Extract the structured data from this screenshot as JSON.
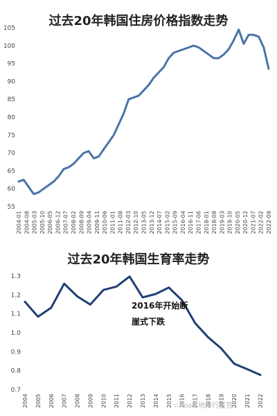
{
  "chart_data": [
    {
      "type": "line",
      "title": "过去20年韩国住房价格指数走势",
      "ylim": [
        55,
        105
      ],
      "yticks": [
        55,
        60,
        65,
        70,
        75,
        80,
        85,
        90,
        95,
        100,
        105
      ],
      "grid": false,
      "color": "#4a73a8",
      "x_ticks": [
        "2004-01",
        "2004-08",
        "2005-03",
        "2005-10",
        "2006-05",
        "2006-12",
        "2007-07",
        "2008-02",
        "2008-09",
        "2009-04",
        "2009-11",
        "2010-06",
        "2011-01",
        "2011-08",
        "2012-03",
        "2012-10",
        "2013-05",
        "2013-12",
        "2014-07",
        "2015-02",
        "2015-09",
        "2016-04",
        "2016-11",
        "2017-06",
        "2018-01",
        "2018-08",
        "2019-03",
        "2019-10",
        "2020-05",
        "2020-12",
        "2021-07",
        "2022-02",
        "2022-09"
      ],
      "series": [
        {
          "name": "",
          "values": [
            62,
            62.5,
            60.5,
            58.5,
            59,
            60,
            61,
            62,
            63.5,
            65.5,
            66,
            67,
            68.5,
            70,
            70.5,
            68.5,
            69,
            71,
            73,
            75,
            78,
            81,
            85,
            85.5,
            86,
            87.5,
            89,
            91,
            92.5,
            94,
            96.5,
            98,
            98.5,
            99,
            99.5,
            100,
            99.5,
            98.5,
            97.5,
            96.5,
            96.5,
            97.5,
            99,
            101.5,
            104.5,
            100.5,
            103,
            103,
            102.5,
            99.5,
            93.5
          ]
        }
      ]
    },
    {
      "type": "line",
      "title": "过去20年韩国生育率走势",
      "ylim": [
        0.7,
        1.3
      ],
      "yticks": [
        0.7,
        0.8,
        0.9,
        1.0,
        1.1,
        1.2,
        1.3
      ],
      "grid": false,
      "color": "#1e3f73",
      "categories": [
        "2004",
        "2005",
        "2006",
        "2007",
        "2008",
        "2009",
        "2010",
        "2011",
        "2012",
        "2013",
        "2014",
        "2015",
        "2016",
        "2017",
        "2018",
        "2019",
        "2020",
        "2021",
        "2022"
      ],
      "series": [
        {
          "name": "",
          "values": [
            1.164,
            1.085,
            1.132,
            1.259,
            1.192,
            1.149,
            1.226,
            1.244,
            1.297,
            1.187,
            1.205,
            1.239,
            1.172,
            1.052,
            0.977,
            0.918,
            0.837,
            0.808,
            0.778
          ]
        }
      ],
      "annotations": [
        "2016年开始断",
        "崖式下跌"
      ]
    }
  ],
  "watermark": "☆Rose 地缘行者宫"
}
